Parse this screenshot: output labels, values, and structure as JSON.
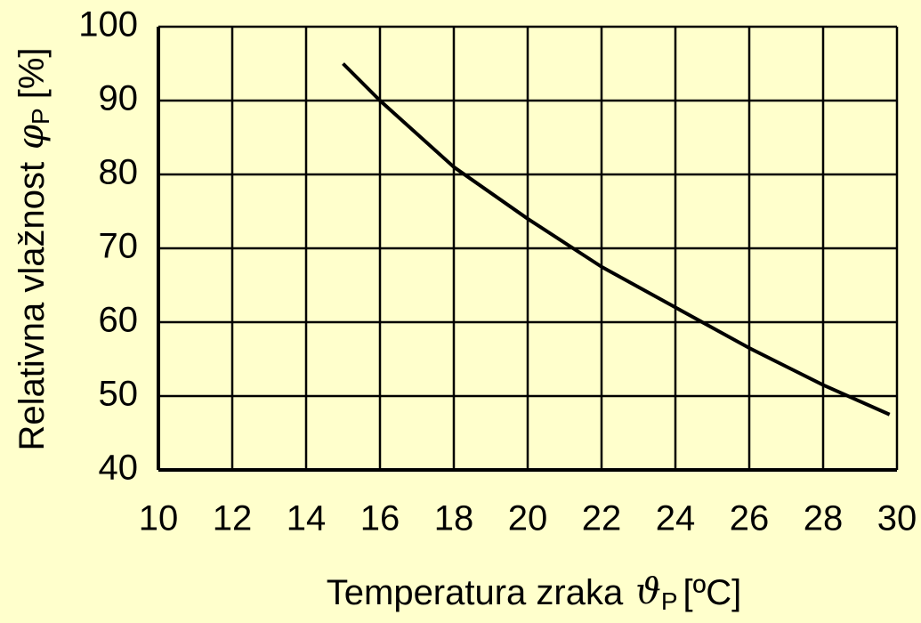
{
  "chart_data": {
    "type": "line",
    "x_label": {
      "text": "Temperatura zraka",
      "symbol": "ϑ",
      "subscript": "P",
      "unit": "[ºC]"
    },
    "y_label": {
      "text": "Relativna vlažnost",
      "symbol": "φ",
      "subscript": "P",
      "unit": "[%]"
    },
    "x": [
      15,
      16,
      18,
      20,
      22,
      24,
      26,
      28,
      29.8
    ],
    "series": [
      {
        "name": null,
        "color": "#000000",
        "values": [
          95,
          90,
          81,
          74,
          67.5,
          62,
          56.5,
          51.5,
          47.5
        ]
      }
    ],
    "xlim": [
      10,
      30
    ],
    "xticks": [
      10,
      12,
      14,
      16,
      18,
      20,
      22,
      24,
      26,
      28,
      30
    ],
    "ylim": [
      40,
      100
    ],
    "yticks": [
      40,
      50,
      60,
      70,
      80,
      90,
      100
    ],
    "grid": true
  }
}
